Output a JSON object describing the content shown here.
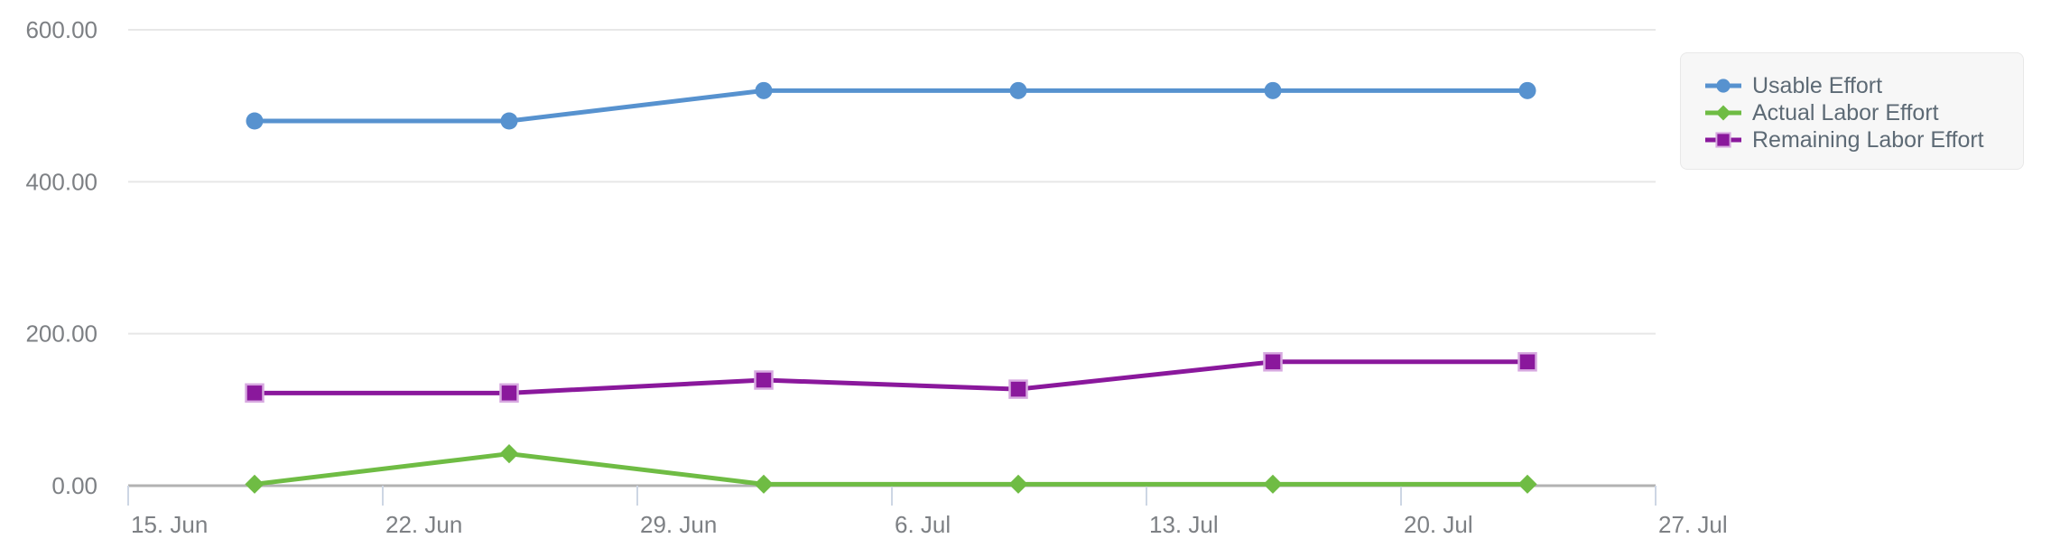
{
  "chart_data": {
    "type": "line",
    "title": "",
    "xlabel": "",
    "ylabel": "",
    "ylim": [
      0,
      600
    ],
    "grid": true,
    "legend_position": "top-right",
    "y_ticks": [
      0,
      200,
      400,
      600
    ],
    "y_tick_labels": [
      "0.00",
      "200.00",
      "400.00",
      "600.00"
    ],
    "x_tick_labels": [
      "15. Jun",
      "22. Jun",
      "29. Jun",
      "6. Jul",
      "13. Jul",
      "20. Jul",
      "27. Jul"
    ],
    "x_dates": [
      "18. Jun",
      "25. Jun",
      "2. Jul",
      "9. Jul",
      "16. Jul",
      "23. Jul"
    ],
    "series": [
      {
        "name": "Usable Effort",
        "marker": "circle",
        "color": "#5792cf",
        "values": [
          480,
          480,
          520,
          520,
          520,
          520
        ]
      },
      {
        "name": "Actual Labor Effort",
        "marker": "diamond",
        "color": "#6fbc44",
        "values": [
          2,
          42,
          2,
          2,
          2,
          2
        ]
      },
      {
        "name": "Remaining Labor Effort",
        "marker": "square",
        "color": "#8a189c",
        "marker_stroke": "#d7a9e0",
        "values": [
          122,
          122,
          139,
          127,
          163,
          163
        ]
      }
    ]
  },
  "colors": {
    "background": "#ffffff",
    "axis_label": "#7d8084",
    "gridline": "#e7e7e7",
    "axis_line": "#b2b2b2",
    "tick": "#cdd6e4",
    "legend_bg": "#f7f7f7",
    "legend_border": "#e8e8e8",
    "legend_text": "#5d6a75"
  }
}
